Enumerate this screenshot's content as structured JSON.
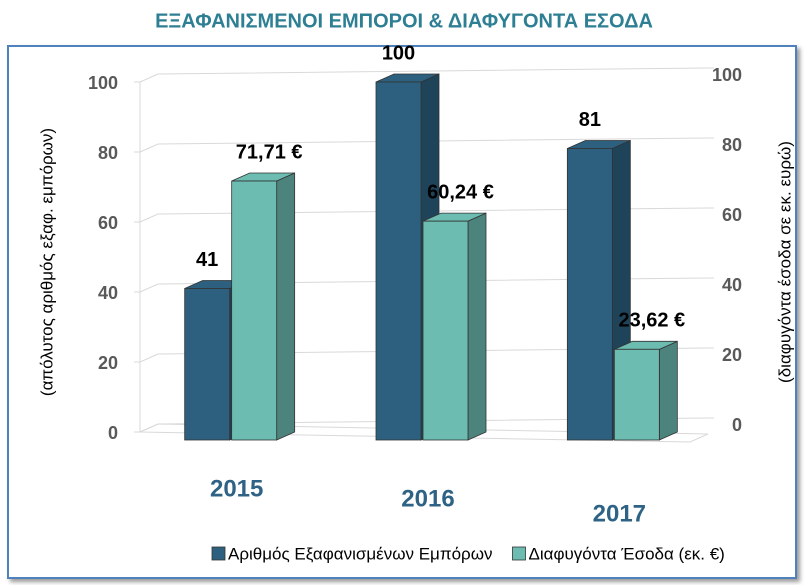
{
  "chart_data": {
    "type": "bar3d",
    "title": "ΕΞΑΦΑΝΙΣΜΕΝΟΙ ΕΜΠΟΡΟΙ & ΔΙΑΦΥΓΟΝΤΑ ΕΣΟΔΑ",
    "categories": [
      "2015",
      "2016",
      "2017"
    ],
    "series": [
      {
        "name": "Αριθμός Εξαφανισμένων Εμπόρων",
        "color": "#2d607f",
        "values": [
          41,
          100,
          81
        ]
      },
      {
        "name": "Διαφυγόντα Έσοδα (εκ. €)",
        "color": "#6cbcb2",
        "values": [
          71.71,
          60.24,
          23.62
        ],
        "value_labels": [
          "71,71 €",
          "60,24 €",
          "23,62 €"
        ],
        "axis": "y2"
      }
    ],
    "ylabel": "(απόλυτος αριθμός εξαφ. εμπόρων)",
    "y2label": "(διαφυγόντα  έσοδα  σε εκ. ευρώ)",
    "ylim": [
      0,
      100
    ],
    "yticks": [
      0,
      20,
      40,
      60,
      80,
      100
    ],
    "y2lim": [
      0,
      100
    ],
    "y2ticks": [
      0,
      20,
      40,
      60,
      80,
      100
    ],
    "grid": true,
    "legend": "bottom"
  }
}
